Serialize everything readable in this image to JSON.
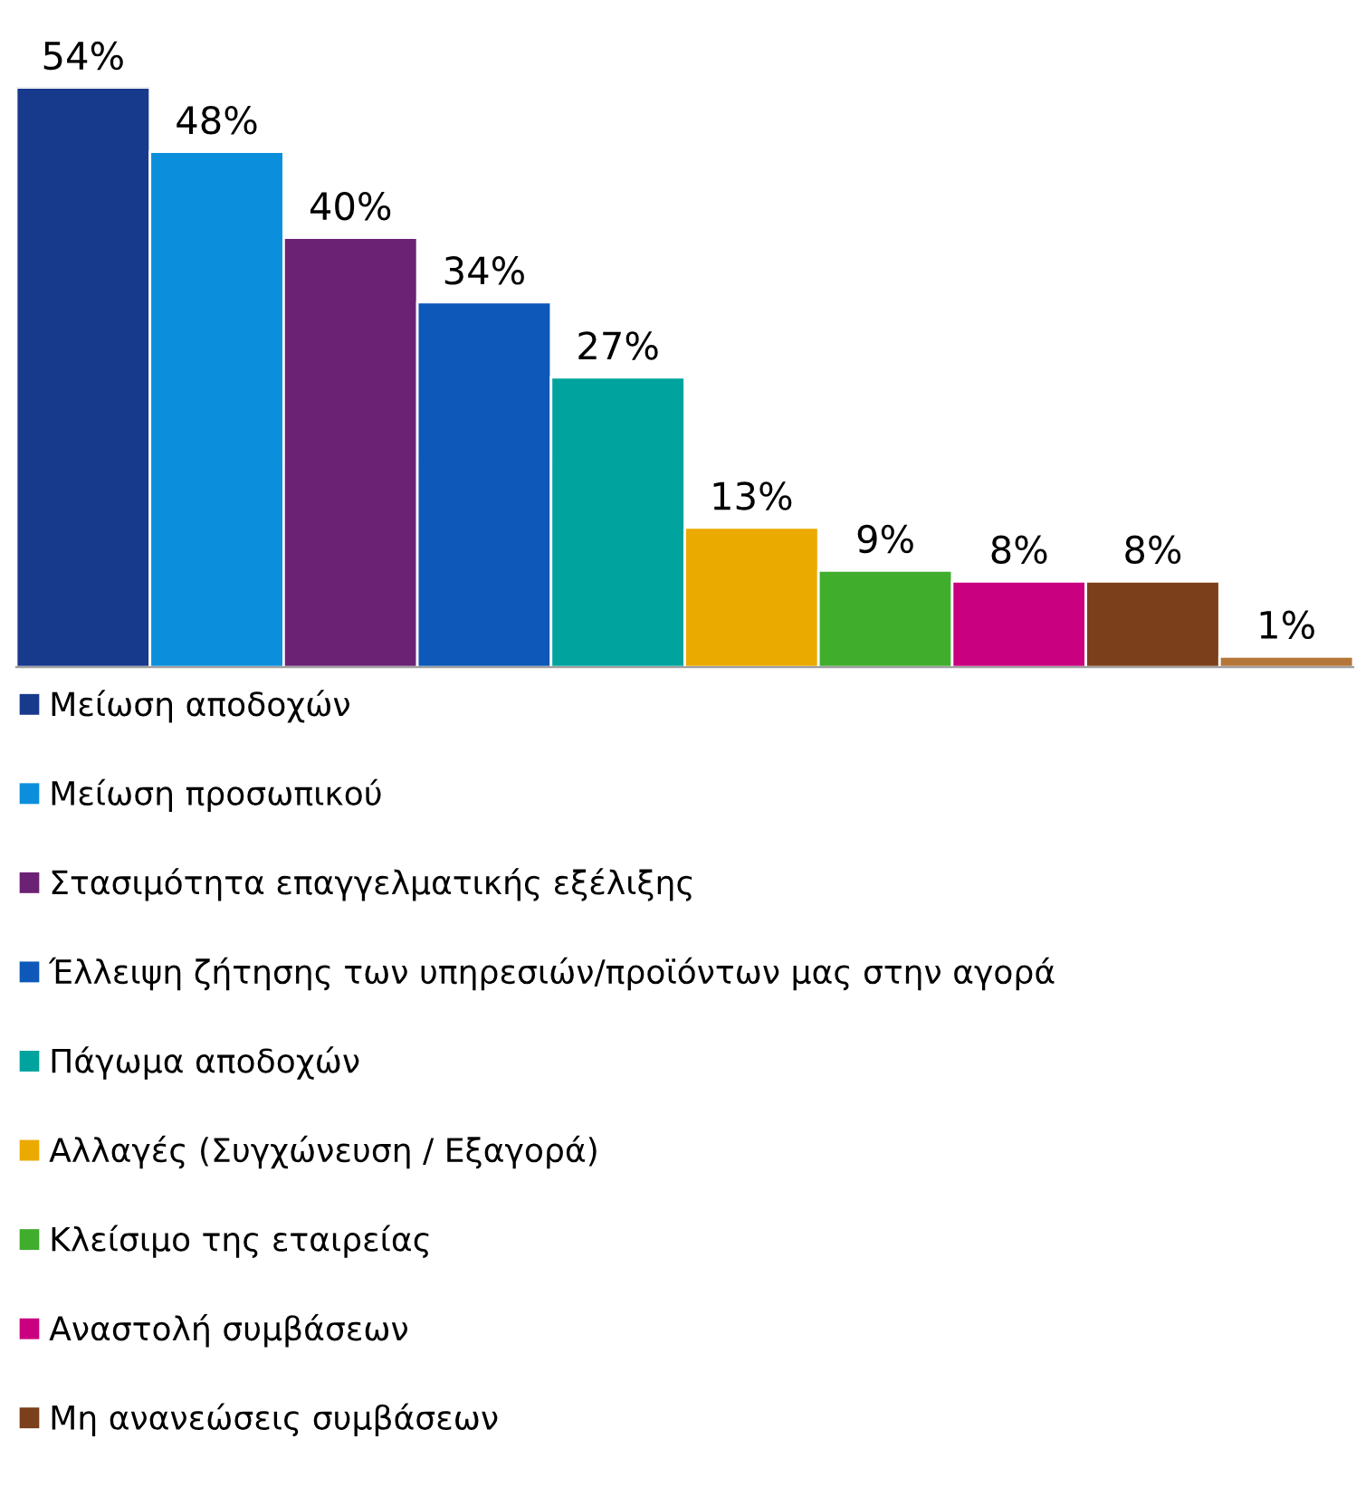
{
  "chart_data": {
    "type": "bar",
    "stacked": true,
    "categories": [
      null,
      null,
      null,
      null,
      null,
      null,
      null,
      null,
      null,
      null
    ],
    "series": [
      {
        "name": "Μείωση αποδοχών",
        "color": "#183a8c",
        "values": [
          54,
          null,
          null,
          null,
          null,
          null,
          null,
          null,
          null,
          null
        ],
        "value_labels": [
          "54%",
          null,
          null,
          null,
          null,
          null,
          null,
          null,
          null,
          null
        ]
      },
      {
        "name": "Μείωση προσωπικού",
        "color": "#0b8fdc",
        "values": [
          null,
          48,
          null,
          null,
          null,
          null,
          null,
          null,
          null,
          null
        ],
        "value_labels": [
          null,
          "48%",
          null,
          null,
          null,
          null,
          null,
          null,
          null,
          null
        ]
      },
      {
        "name": "Στασιμότητα επαγγελματικής εξέλιξης",
        "color": "#6b2174",
        "values": [
          null,
          null,
          40,
          null,
          null,
          null,
          null,
          null,
          null,
          null
        ],
        "value_labels": [
          null,
          null,
          "40%",
          null,
          null,
          null,
          null,
          null,
          null,
          null
        ]
      },
      {
        "name": "Έλλειψη ζήτησης των υπηρεσιών/προϊόντων μας στην αγορά",
        "color": "#0d58b8",
        "values": [
          null,
          null,
          null,
          34,
          null,
          null,
          null,
          null,
          null,
          null
        ],
        "value_labels": [
          null,
          null,
          null,
          "34%",
          null,
          null,
          null,
          null,
          null,
          null
        ]
      },
      {
        "name": "Πάγωμα αποδοχών",
        "color": "#00a39e",
        "values": [
          null,
          null,
          null,
          null,
          27,
          null,
          null,
          null,
          null,
          null
        ],
        "value_labels": [
          null,
          null,
          null,
          null,
          "27%",
          null,
          null,
          null,
          null,
          null
        ]
      },
      {
        "name": "Αλλαγές (Συγχώνευση / Εξαγορά)",
        "color": "#ebaa00",
        "values": [
          null,
          null,
          null,
          null,
          null,
          13,
          null,
          null,
          null,
          null
        ],
        "value_labels": [
          null,
          null,
          null,
          null,
          null,
          "13%",
          null,
          null,
          null,
          null
        ]
      },
      {
        "name": "Κλείσιμο της εταιρείας",
        "color": "#40ad2d",
        "values": [
          null,
          null,
          null,
          null,
          null,
          null,
          9,
          null,
          null,
          null
        ],
        "value_labels": [
          null,
          null,
          null,
          null,
          null,
          null,
          "9%",
          null,
          null,
          null
        ]
      },
      {
        "name": "Αναστολή συμβάσεων",
        "color": "#c9007f",
        "values": [
          null,
          null,
          null,
          null,
          null,
          null,
          null,
          8,
          null,
          null
        ],
        "value_labels": [
          null,
          null,
          null,
          null,
          null,
          null,
          null,
          "8%",
          null,
          null
        ]
      },
      {
        "name": "Μη ανανεώσεις συμβάσεων",
        "color": "#7b3f1b",
        "values": [
          null,
          null,
          null,
          null,
          null,
          null,
          null,
          null,
          8,
          null
        ],
        "value_labels": [
          null,
          null,
          null,
          null,
          null,
          null,
          null,
          null,
          "8%",
          null
        ]
      },
      {
        "color": "#b5763a",
        "values": [
          null,
          null,
          null,
          null,
          null,
          null,
          null,
          null,
          null,
          1
        ],
        "value_labels": [
          null,
          null,
          null,
          null,
          null,
          null,
          null,
          null,
          null,
          "1%"
        ]
      }
    ],
    "legend": "bottom"
  }
}
